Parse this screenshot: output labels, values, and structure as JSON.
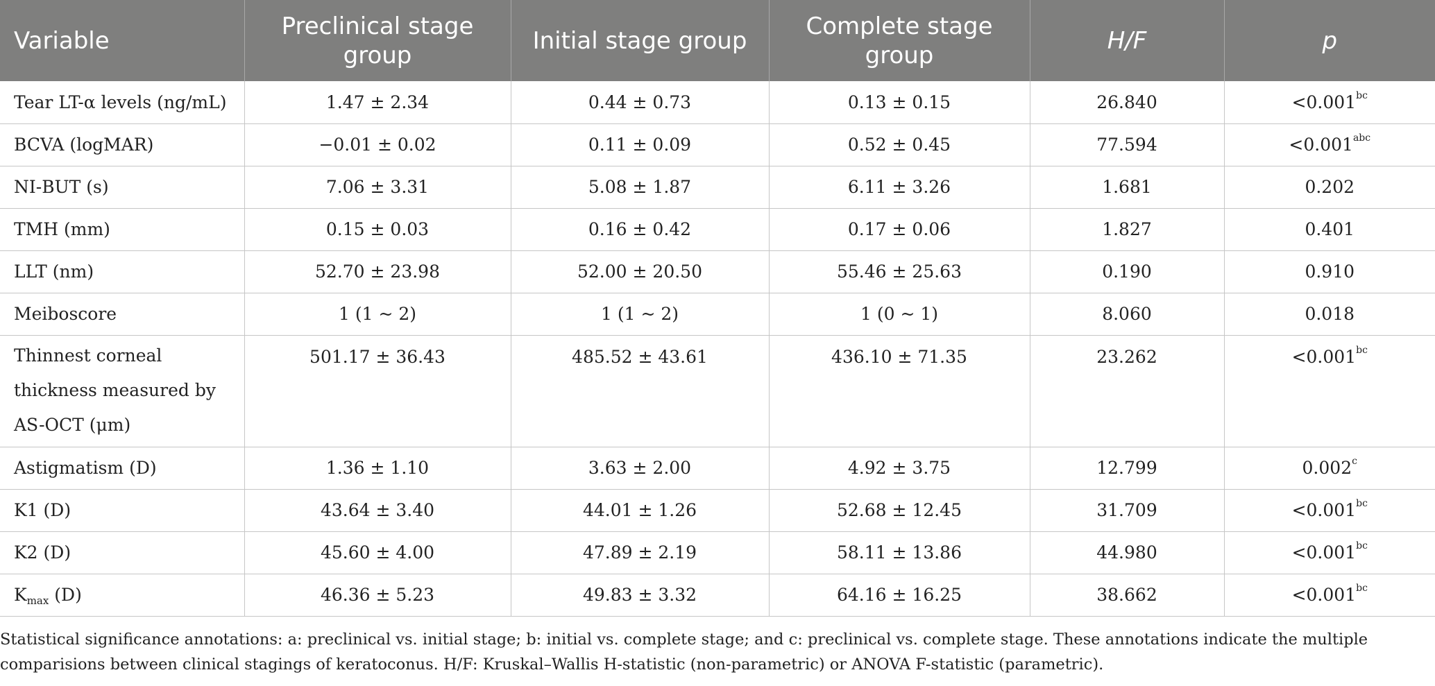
{
  "table": {
    "headers": [
      "Variable",
      "Preclinical stage group",
      "Initial stage group",
      "Complete stage group",
      "H/F",
      "p"
    ],
    "rows": [
      {
        "variable": "Tear LT-α levels (ng/mL)",
        "preclinical": "1.47 ± 2.34",
        "initial": "0.44 ± 0.73",
        "complete": "0.13 ± 0.15",
        "hf": "26.840",
        "p": "<0.001",
        "p_sup": "bc"
      },
      {
        "variable": "BCVA (logMAR)",
        "preclinical": "−0.01 ± 0.02",
        "initial": "0.11 ± 0.09",
        "complete": "0.52 ± 0.45",
        "hf": "77.594",
        "p": "<0.001",
        "p_sup": "abc"
      },
      {
        "variable": "NI-BUT (s)",
        "preclinical": "7.06 ± 3.31",
        "initial": "5.08 ± 1.87",
        "complete": "6.11 ± 3.26",
        "hf": "1.681",
        "p": "0.202",
        "p_sup": ""
      },
      {
        "variable": "TMH (mm)",
        "preclinical": "0.15 ± 0.03",
        "initial": "0.16 ± 0.42",
        "complete": "0.17 ± 0.06",
        "hf": "1.827",
        "p": "0.401",
        "p_sup": ""
      },
      {
        "variable": "LLT (nm)",
        "preclinical": "52.70 ± 23.98",
        "initial": "52.00 ± 20.50",
        "complete": "55.46 ± 25.63",
        "hf": "0.190",
        "p": "0.910",
        "p_sup": ""
      },
      {
        "variable": "Meiboscore",
        "preclinical": "1 (1 ~ 2)",
        "initial": "1 (1 ~ 2)",
        "complete": "1 (0 ~ 1)",
        "hf": "8.060",
        "p": "0.018",
        "p_sup": ""
      },
      {
        "variable": "Thinnest corneal thickness measured by AS-OCT (μm)",
        "preclinical": "501.17 ± 36.43",
        "initial": "485.52 ± 43.61",
        "complete": "436.10 ± 71.35",
        "hf": "23.262",
        "p": "<0.001",
        "p_sup": "bc"
      },
      {
        "variable": "Astigmatism (D)",
        "preclinical": "1.36 ± 1.10",
        "initial": "3.63 ± 2.00",
        "complete": "4.92 ± 3.75",
        "hf": "12.799",
        "p": "0.002",
        "p_sup": "c"
      },
      {
        "variable": "K1 (D)",
        "preclinical": "43.64 ± 3.40",
        "initial": "44.01 ± 1.26",
        "complete": "52.68 ± 12.45",
        "hf": "31.709",
        "p": "<0.001",
        "p_sup": "bc"
      },
      {
        "variable": "K2 (D)",
        "preclinical": "45.60 ± 4.00",
        "initial": "47.89 ± 2.19",
        "complete": "58.11 ± 13.86",
        "hf": "44.980",
        "p": "<0.001",
        "p_sup": "bc"
      },
      {
        "variable_base": "K",
        "variable_sub": "max",
        "variable_rest": " (D)",
        "preclinical": "46.36 ± 5.23",
        "initial": "49.83 ± 3.32",
        "complete": "64.16 ± 16.25",
        "hf": "38.662",
        "p": "<0.001",
        "p_sup": "bc"
      }
    ]
  },
  "footnote": "Statistical significance annotations: a: preclinical vs. initial stage; b: initial vs. complete stage; and c: preclinical vs. complete stage. These annotations indicate the multiple comparisions between clinical stagings of keratoconus. H/F: Kruskal–Wallis H-statistic (non-parametric) or ANOVA F-statistic (parametric)."
}
